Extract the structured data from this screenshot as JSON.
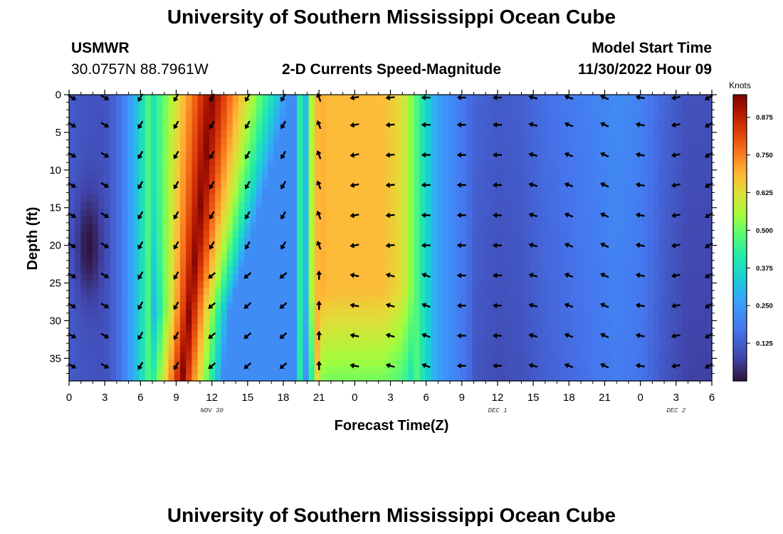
{
  "page": {
    "title_top": "University of Southern Mississippi Ocean Cube",
    "title_bottom": "University of Southern Mississippi Ocean Cube",
    "station": "USMWR",
    "location": "30.0757N  88.7961W",
    "subtitle": "2-D Currents Speed-Magnitude",
    "model_label": "Model Start Time",
    "model_time": "11/30/2022 Hour 09"
  },
  "chart_data": {
    "type": "heatmap",
    "title": "2-D Currents Speed-Magnitude",
    "xlabel": "Forecast Time(Z)",
    "ylabel": "Depth (ft)",
    "x_hours_range": [
      0,
      54
    ],
    "ylim": [
      0,
      38
    ],
    "x_tick_labels": [
      "0",
      "3",
      "6",
      "9",
      "12",
      "15",
      "18",
      "21",
      "0",
      "3",
      "6",
      "9",
      "12",
      "15",
      "18",
      "21",
      "0",
      "3",
      "6"
    ],
    "y_ticks": [
      0,
      5,
      10,
      15,
      20,
      25,
      30,
      35
    ],
    "date_labels": [
      {
        "text": "NOV 30",
        "hour": 12
      },
      {
        "text": "DEC 1",
        "hour": 36
      },
      {
        "text": "DEC 2",
        "hour": 51
      }
    ],
    "colorbar": {
      "label": "Knots",
      "min": 0,
      "max": 0.95,
      "ticks": [
        "0.125",
        "0.250",
        "0.375",
        "0.500",
        "0.625",
        "0.750",
        "0.875"
      ],
      "tick_values": [
        0.125,
        0.25,
        0.375,
        0.5,
        0.625,
        0.75,
        0.875
      ]
    },
    "speed_profile": {
      "hours": [
        0,
        2,
        3,
        4,
        5,
        6,
        7,
        8,
        9,
        10,
        11,
        12,
        13,
        14,
        15,
        16,
        17,
        18,
        19,
        20,
        21,
        22,
        24,
        26,
        27,
        28,
        29,
        30,
        31,
        32,
        33,
        34,
        36,
        38,
        40,
        42,
        44,
        46,
        48,
        50,
        52,
        54
      ],
      "knots": [
        0.12,
        0.1,
        0.1,
        0.14,
        0.24,
        0.36,
        0.52,
        0.62,
        0.72,
        0.8,
        0.87,
        0.9,
        0.86,
        0.76,
        0.62,
        0.48,
        0.3,
        0.2,
        0.3,
        0.6,
        0.7,
        0.68,
        0.68,
        0.68,
        0.66,
        0.62,
        0.5,
        0.36,
        0.26,
        0.22,
        0.18,
        0.14,
        0.12,
        0.13,
        0.16,
        0.18,
        0.2,
        0.22,
        0.2,
        0.14,
        0.1,
        0.1
      ]
    },
    "arrows": {
      "hours": [
        0,
        3,
        6,
        9,
        12,
        15,
        18,
        21,
        24,
        27,
        30,
        33,
        36,
        39,
        42,
        45,
        48,
        51,
        54
      ],
      "depths": [
        0,
        4,
        8,
        12,
        16,
        20,
        24,
        28,
        32,
        36
      ],
      "direction_deg_by_hour": [
        30,
        30,
        120,
        120,
        120,
        120,
        120,
        250,
        170,
        175,
        180,
        180,
        180,
        195,
        200,
        205,
        190,
        170,
        150
      ]
    }
  }
}
